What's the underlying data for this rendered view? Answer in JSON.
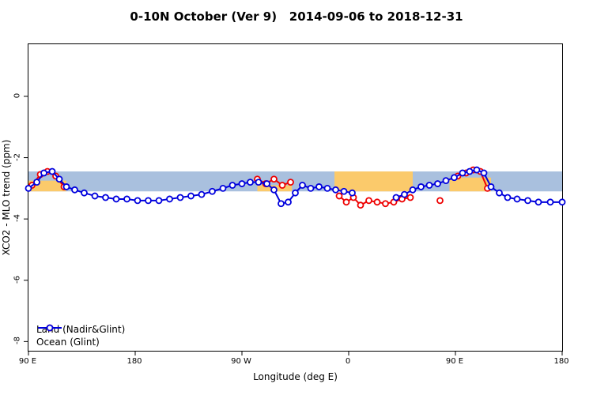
{
  "header": {
    "title": "0-10N October (Ver 9)   2014-09-06 to 2018-12-31"
  },
  "chart_data": {
    "type": "line",
    "title": "0-10N October (Ver 9)  2014-09-06 to 2018-12-31",
    "xlabel": "Longitude (deg E)",
    "ylabel": "XCO2 - MLO trend (ppm)",
    "grid": false,
    "x_axis": {
      "note": "longitude axis wraps: 90E..180..90W..0..90E..180, stored as 90..540",
      "domain": [
        90,
        540
      ],
      "ticks": [
        {
          "pos": 90,
          "label": "90 E"
        },
        {
          "pos": 180,
          "label": "180"
        },
        {
          "pos": 270,
          "label": "90 W"
        },
        {
          "pos": 360,
          "label": "0"
        },
        {
          "pos": 450,
          "label": "90 E"
        },
        {
          "pos": 540,
          "label": "180"
        }
      ]
    },
    "y_axis": {
      "domain": [
        1.7,
        -8.3
      ],
      "ticks": [
        {
          "pos": 0,
          "label": "0"
        },
        {
          "pos": -2,
          "label": "-2"
        },
        {
          "pos": -4,
          "label": "-4"
        },
        {
          "pos": -6,
          "label": "-6"
        },
        {
          "pos": -8,
          "label": "-8"
        }
      ]
    },
    "band": {
      "top": -2.45,
      "bottom": -3.1,
      "color": "#a9c0de"
    },
    "land_color": "#fbca6b",
    "land_patches": [
      {
        "from": 90,
        "to": 122,
        "top": -2.75,
        "bottom": -3.1
      },
      {
        "from": 283,
        "to": 312,
        "top": -2.9,
        "bottom": -3.1
      },
      {
        "from": 348,
        "to": 414,
        "top": -2.45,
        "bottom": -3.1
      },
      {
        "from": 445,
        "to": 480,
        "top": -2.65,
        "bottom": -3.1
      }
    ],
    "series": [
      {
        "name": "Land (Nadir&Glint)",
        "color": "#ee0000",
        "segments": [
          [
            [
              93,
              -2.9
            ],
            [
              100,
              -2.55
            ],
            [
              106,
              -2.45
            ],
            [
              113,
              -2.6
            ],
            [
              120,
              -2.95
            ]
          ],
          [
            [
              283,
              -2.7
            ],
            [
              290,
              -2.85
            ],
            [
              297,
              -2.7
            ],
            [
              304,
              -2.9
            ],
            [
              311,
              -2.8
            ]
          ],
          [
            [
              352,
              -3.25
            ],
            [
              358,
              -3.45
            ],
            [
              364,
              -3.3
            ],
            [
              370,
              -3.55
            ],
            [
              377,
              -3.4
            ],
            [
              384,
              -3.45
            ],
            [
              391,
              -3.5
            ],
            [
              398,
              -3.45
            ],
            [
              405,
              -3.35
            ],
            [
              412,
              -3.3
            ]
          ],
          [
            [
              437,
              -3.4
            ]
          ],
          [
            [
              452,
              -2.6
            ],
            [
              459,
              -2.5
            ],
            [
              465,
              -2.4
            ],
            [
              471,
              -2.45
            ],
            [
              477,
              -3.0
            ]
          ]
        ]
      },
      {
        "name": "Ocean (Glint)",
        "color": "#0000dd",
        "segments": [
          [
            [
              90,
              -3.0
            ],
            [
              97,
              -2.8
            ],
            [
              103,
              -2.5
            ],
            [
              110,
              -2.45
            ],
            [
              116,
              -2.7
            ],
            [
              122,
              -2.95
            ],
            [
              129,
              -3.05
            ],
            [
              137,
              -3.15
            ],
            [
              146,
              -3.25
            ],
            [
              155,
              -3.3
            ],
            [
              164,
              -3.35
            ],
            [
              173,
              -3.35
            ],
            [
              182,
              -3.4
            ],
            [
              191,
              -3.4
            ],
            [
              200,
              -3.4
            ],
            [
              209,
              -3.35
            ],
            [
              218,
              -3.3
            ],
            [
              227,
              -3.25
            ],
            [
              236,
              -3.2
            ],
            [
              245,
              -3.1
            ],
            [
              254,
              -3.0
            ],
            [
              262,
              -2.9
            ],
            [
              270,
              -2.85
            ],
            [
              277,
              -2.8
            ],
            [
              284,
              -2.8
            ],
            [
              291,
              -2.85
            ],
            [
              297,
              -3.05
            ],
            [
              303,
              -3.5
            ],
            [
              309,
              -3.45
            ],
            [
              315,
              -3.15
            ],
            [
              321,
              -2.9
            ],
            [
              328,
              -3.0
            ],
            [
              335,
              -2.95
            ],
            [
              342,
              -3.0
            ],
            [
              349,
              -3.05
            ],
            [
              356,
              -3.1
            ],
            [
              363,
              -3.15
            ]
          ],
          [
            [
              400,
              -3.3
            ],
            [
              407,
              -3.2
            ],
            [
              414,
              -3.05
            ],
            [
              421,
              -2.95
            ],
            [
              428,
              -2.9
            ],
            [
              435,
              -2.85
            ],
            [
              442,
              -2.75
            ],
            [
              449,
              -2.65
            ],
            [
              456,
              -2.5
            ],
            [
              462,
              -2.45
            ],
            [
              468,
              -2.4
            ],
            [
              474,
              -2.5
            ],
            [
              480,
              -2.95
            ],
            [
              487,
              -3.15
            ],
            [
              494,
              -3.3
            ],
            [
              502,
              -3.35
            ],
            [
              511,
              -3.4
            ],
            [
              520,
              -3.45
            ],
            [
              530,
              -3.45
            ],
            [
              540,
              -3.45
            ]
          ]
        ]
      }
    ],
    "legend": {
      "position": "bottom-left",
      "entries": [
        "Land (Nadir&Glint)",
        "Ocean (Glint)"
      ]
    }
  }
}
